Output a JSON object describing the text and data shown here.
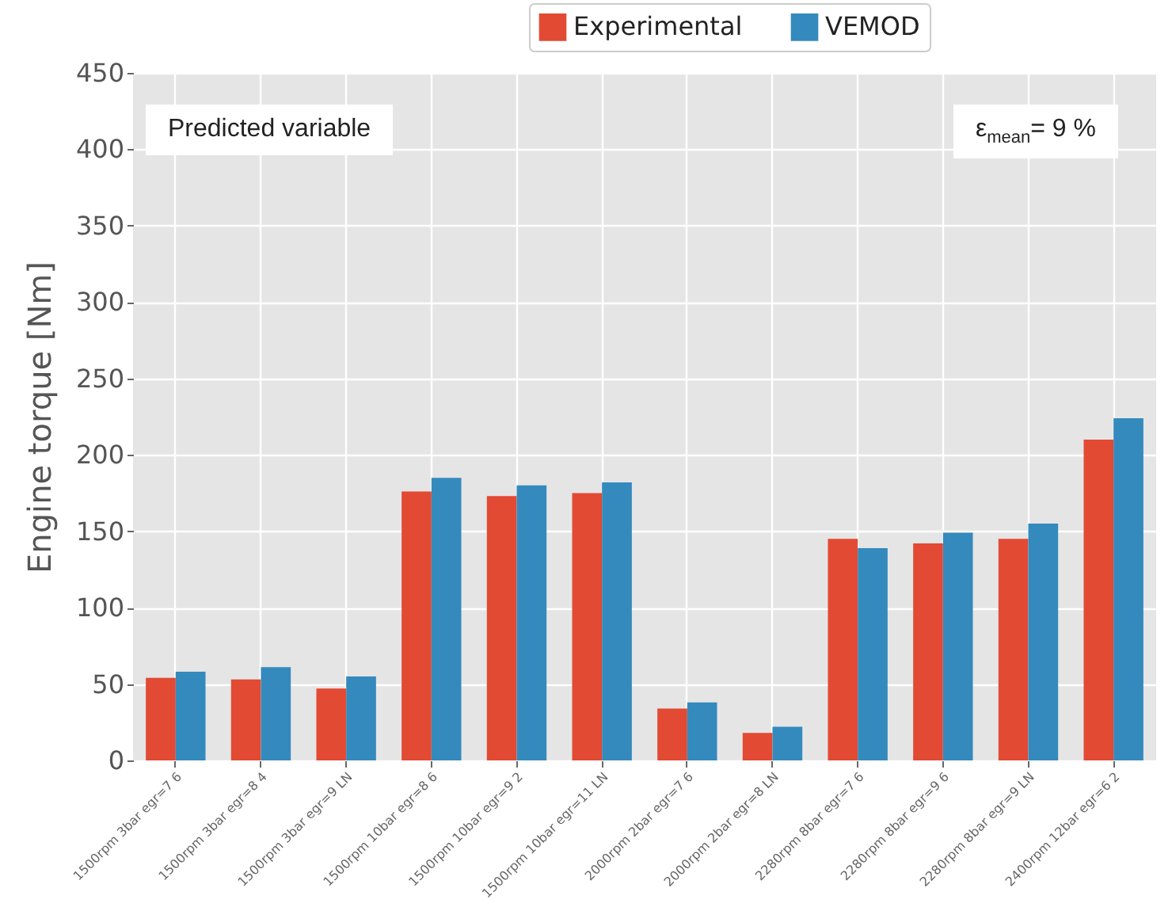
{
  "chart_data": {
    "type": "bar",
    "ylabel": "Engine torque [Nm]",
    "categories": [
      "1500rpm 3bar egr=7 6",
      "1500rpm 3bar egr=8 4",
      "1500rpm 3bar egr=9 LN",
      "1500rpm 10bar egr=8 6",
      "1500rpm 10bar egr=9 2",
      "1500rpm 10bar egr=11 LN",
      "2000rpm 2bar egr=7 6",
      "2000rpm 2bar egr=8 LN",
      "2280rpm 8bar egr=7 6",
      "2280rpm 8bar egr=9 6",
      "2280rpm 8bar egr=9 LN",
      "2400rpm 12bar egr=6 2"
    ],
    "series": [
      {
        "name": "Experimental",
        "color": "#e24a33",
        "values": [
          54,
          53,
          47,
          176,
          173,
          175,
          34,
          18,
          145,
          142,
          145,
          210
        ]
      },
      {
        "name": "VEMOD",
        "color": "#348abd",
        "values": [
          58,
          61,
          55,
          185,
          180,
          182,
          38,
          22,
          139,
          149,
          155,
          224
        ]
      }
    ],
    "ylim": [
      0,
      450
    ],
    "yticks": [
      0,
      50,
      100,
      150,
      200,
      250,
      300,
      350,
      400,
      450
    ],
    "grid": true,
    "legend": "top",
    "annotations": [
      "Predicted variable",
      "ε$_{mean}$= 9 %"
    ]
  }
}
